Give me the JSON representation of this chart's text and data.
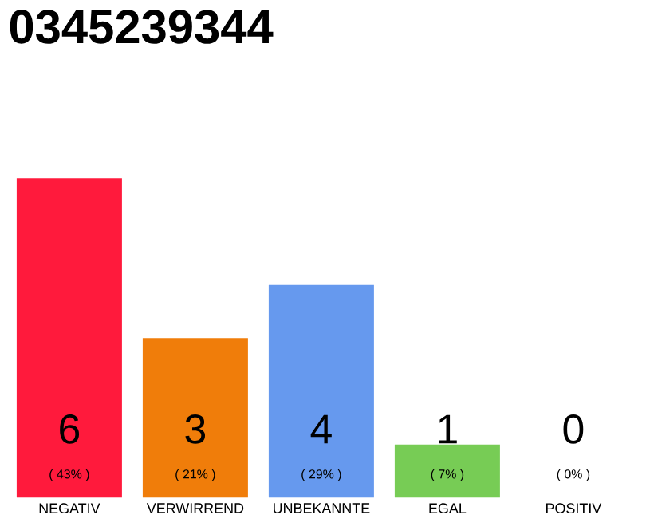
{
  "chart_data": {
    "type": "bar",
    "title": "0345239344",
    "categories": [
      "NEGATIV",
      "VERWIRREND",
      "UNBEKANNTE",
      "EGAL",
      "POSITIV"
    ],
    "values": [
      6,
      3,
      4,
      1,
      0
    ],
    "colors": [
      "#ff1a3c",
      "#f07d0a",
      "#6699ee",
      "#77cc55",
      "#eeeeee"
    ],
    "value_labels": [
      "6",
      "3",
      "4",
      "1",
      "0"
    ],
    "annotations": [
      "( 43% )",
      "( 21% )",
      "( 29% )",
      "( 7% )",
      "( 0% )"
    ],
    "tick_labels": "x"
  }
}
